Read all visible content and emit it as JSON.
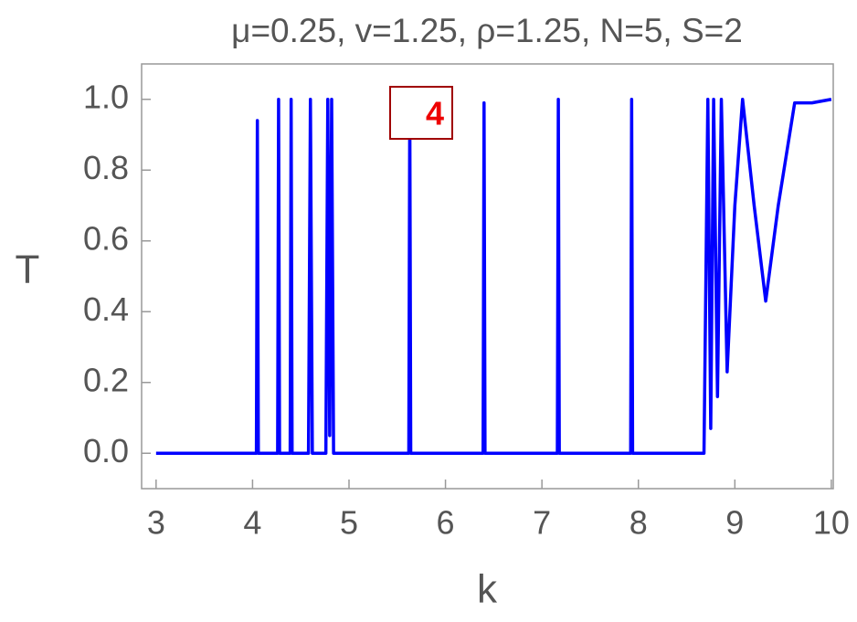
{
  "chart_data": {
    "type": "line",
    "title": "μ=0.25, v=1.25, ρ=1.25, N=5, S=2",
    "xlabel": "k",
    "ylabel": "T",
    "annotation": "4",
    "color": "#0000ff",
    "x": [
      3,
      4.04,
      4.05,
      4.06,
      4.26,
      4.27,
      4.28,
      4.39,
      4.4,
      4.41,
      4.58,
      4.6,
      4.62,
      4.76,
      4.78,
      4.8,
      4.82,
      4.84,
      5.62,
      5.63,
      5.64,
      6.39,
      6.4,
      6.41,
      7.16,
      7.17,
      7.18,
      7.92,
      7.93,
      7.94,
      8.68,
      8.72,
      8.75,
      8.78,
      8.82,
      8.86,
      8.92,
      9.0,
      9.08,
      9.2,
      9.32,
      9.45,
      9.62,
      9.8,
      10
    ],
    "values": [
      0,
      0,
      0.94,
      0,
      0,
      1,
      0,
      0,
      1,
      0,
      0,
      1,
      0,
      0,
      1,
      0.05,
      1,
      0,
      0,
      0.98,
      0,
      0,
      0.99,
      0,
      0,
      1,
      0,
      0,
      1,
      0,
      0,
      1,
      0.07,
      1,
      0.16,
      1,
      0.23,
      0.7,
      1,
      0.7,
      0.43,
      0.7,
      0.99,
      0.99,
      1
    ],
    "xlim": [
      2.85,
      10.02
    ],
    "ylim": [
      -0.1,
      1.1
    ],
    "xticks": [
      3,
      4,
      5,
      6,
      7,
      8,
      9,
      10
    ],
    "yticks": [
      {
        "value": 0,
        "label": "0.0"
      },
      0.2,
      0.4,
      0.6,
      0.8,
      {
        "value": 1,
        "label": "1.0"
      }
    ]
  }
}
